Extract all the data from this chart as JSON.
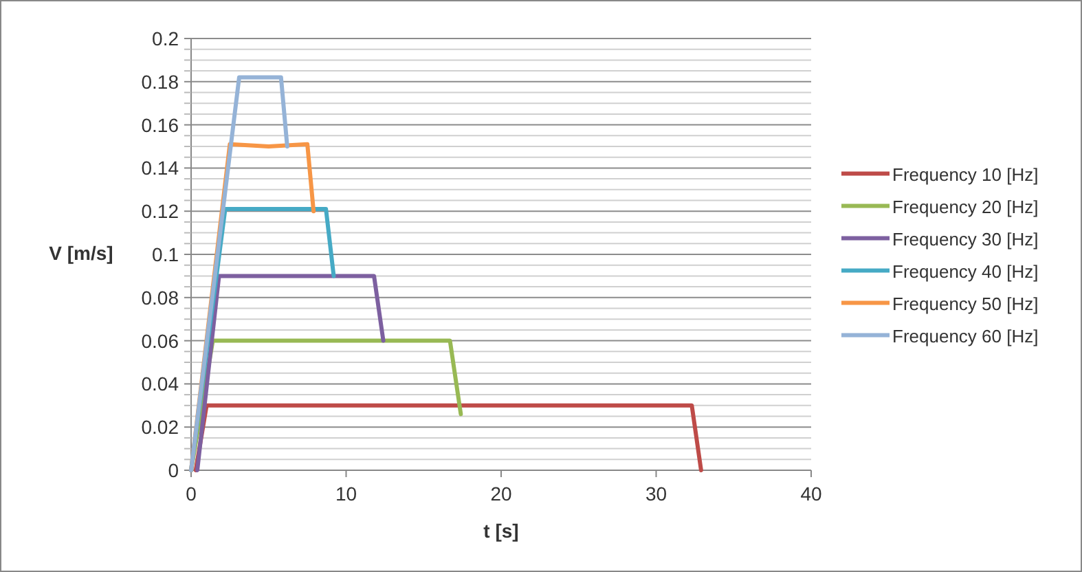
{
  "chart_data": {
    "type": "line",
    "xlabel": "t [s]",
    "ylabel": "V [m/s]",
    "xlim": [
      0,
      40
    ],
    "xticks": [
      0,
      10,
      20,
      30,
      40
    ],
    "ylim": [
      0,
      0.2
    ],
    "yticks": [
      0,
      {
        "value": 0.005,
        "label": null
      },
      {
        "value": 0.01,
        "label": null
      },
      {
        "value": 0.015,
        "label": null
      },
      0.02,
      {
        "value": 0.025,
        "label": null
      },
      {
        "value": 0.03,
        "label": null
      },
      {
        "value": 0.035,
        "label": null
      },
      0.04,
      {
        "value": 0.045,
        "label": null
      },
      {
        "value": 0.05,
        "label": null
      },
      {
        "value": 0.055,
        "label": null
      },
      0.06,
      {
        "value": 0.065,
        "label": null
      },
      {
        "value": 0.07,
        "label": null
      },
      {
        "value": 0.075,
        "label": null
      },
      0.08,
      {
        "value": 0.085,
        "label": null
      },
      {
        "value": 0.09,
        "label": null
      },
      {
        "value": 0.095,
        "label": null
      },
      0.1,
      {
        "value": 0.105,
        "label": null
      },
      {
        "value": 0.11,
        "label": null
      },
      {
        "value": 0.115,
        "label": null
      },
      0.12,
      {
        "value": 0.125,
        "label": null
      },
      {
        "value": 0.13,
        "label": null
      },
      {
        "value": 0.135,
        "label": null
      },
      0.14,
      {
        "value": 0.145,
        "label": null
      },
      {
        "value": 0.15,
        "label": null
      },
      {
        "value": 0.155,
        "label": null
      },
      0.16,
      {
        "value": 0.165,
        "label": null
      },
      {
        "value": 0.17,
        "label": null
      },
      {
        "value": 0.175,
        "label": null
      },
      0.18,
      {
        "value": 0.185,
        "label": null
      },
      {
        "value": 0.19,
        "label": null
      },
      {
        "value": 0.195,
        "label": null
      },
      0.2
    ],
    "grid": "y",
    "legend": "right",
    "marker": "none",
    "line_style": "solid",
    "series": [
      {
        "name": "Frequency 10 [Hz]",
        "color": "#be4b48",
        "x": [
          0.3,
          1.0,
          5,
          10,
          15,
          20,
          25,
          30,
          32.3,
          32.6,
          32.9
        ],
        "values": [
          0,
          0.03,
          0.03,
          0.03,
          0.03,
          0.03,
          0.03,
          0.03,
          0.03,
          0.015,
          0
        ]
      },
      {
        "name": "Frequency 20 [Hz]",
        "color": "#98b954",
        "x": [
          0,
          1.4,
          5,
          10,
          15,
          16.7,
          17.4
        ],
        "values": [
          0,
          0.06,
          0.06,
          0.06,
          0.06,
          0.06,
          0.026
        ]
      },
      {
        "name": "Frequency 30 [Hz]",
        "color": "#7d60a0",
        "x": [
          0.4,
          1.8,
          5,
          10,
          11.8,
          12.4
        ],
        "values": [
          0,
          0.09,
          0.09,
          0.09,
          0.09,
          0.06
        ]
      },
      {
        "name": "Frequency 40 [Hz]",
        "color": "#46aac5",
        "x": [
          0,
          2.2,
          5,
          8.7,
          9.2
        ],
        "values": [
          0,
          0.121,
          0.121,
          0.121,
          0.09
        ]
      },
      {
        "name": "Frequency 50 [Hz]",
        "color": "#f79646",
        "x": [
          0,
          2.5,
          5,
          7.5,
          7.9
        ],
        "values": [
          0,
          0.151,
          0.15,
          0.151,
          0.12
        ]
      },
      {
        "name": "Frequency 60 [Hz]",
        "color": "#95b3d7",
        "x": [
          0,
          3.1,
          4.5,
          5.8,
          6.2
        ],
        "values": [
          0,
          0.182,
          0.182,
          0.182,
          0.15
        ]
      }
    ]
  }
}
